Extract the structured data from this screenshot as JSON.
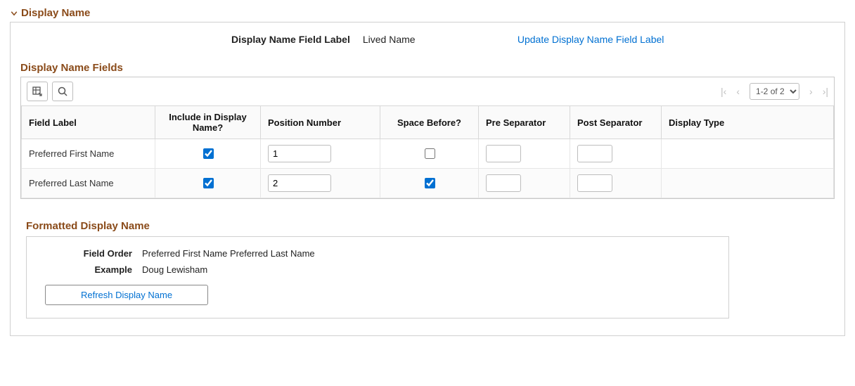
{
  "section": {
    "title": "Display Name"
  },
  "header": {
    "field_label_lbl": "Display Name Field Label",
    "field_label_val": "Lived Name",
    "update_link": "Update Display Name Field Label"
  },
  "grid": {
    "title": "Display Name Fields",
    "page_text": "1-2 of 2",
    "columns": {
      "field_label": "Field Label",
      "include": "Include in Display Name?",
      "position": "Position Number",
      "space_before": "Space Before?",
      "pre_sep": "Pre Separator",
      "post_sep": "Post Separator",
      "display_type": "Display Type"
    },
    "rows": [
      {
        "field_label": "Preferred First Name",
        "include": true,
        "position": "1",
        "space_before": false,
        "pre": "",
        "post": "",
        "display_type": ""
      },
      {
        "field_label": "Preferred Last Name",
        "include": true,
        "position": "2",
        "space_before": true,
        "pre": "",
        "post": "",
        "display_type": ""
      }
    ]
  },
  "formatted": {
    "title": "Formatted Display Name",
    "field_order_lbl": "Field Order",
    "field_order_val": "Preferred First Name Preferred Last Name",
    "example_lbl": "Example",
    "example_val": "Doug Lewisham",
    "refresh_btn": "Refresh Display Name"
  }
}
